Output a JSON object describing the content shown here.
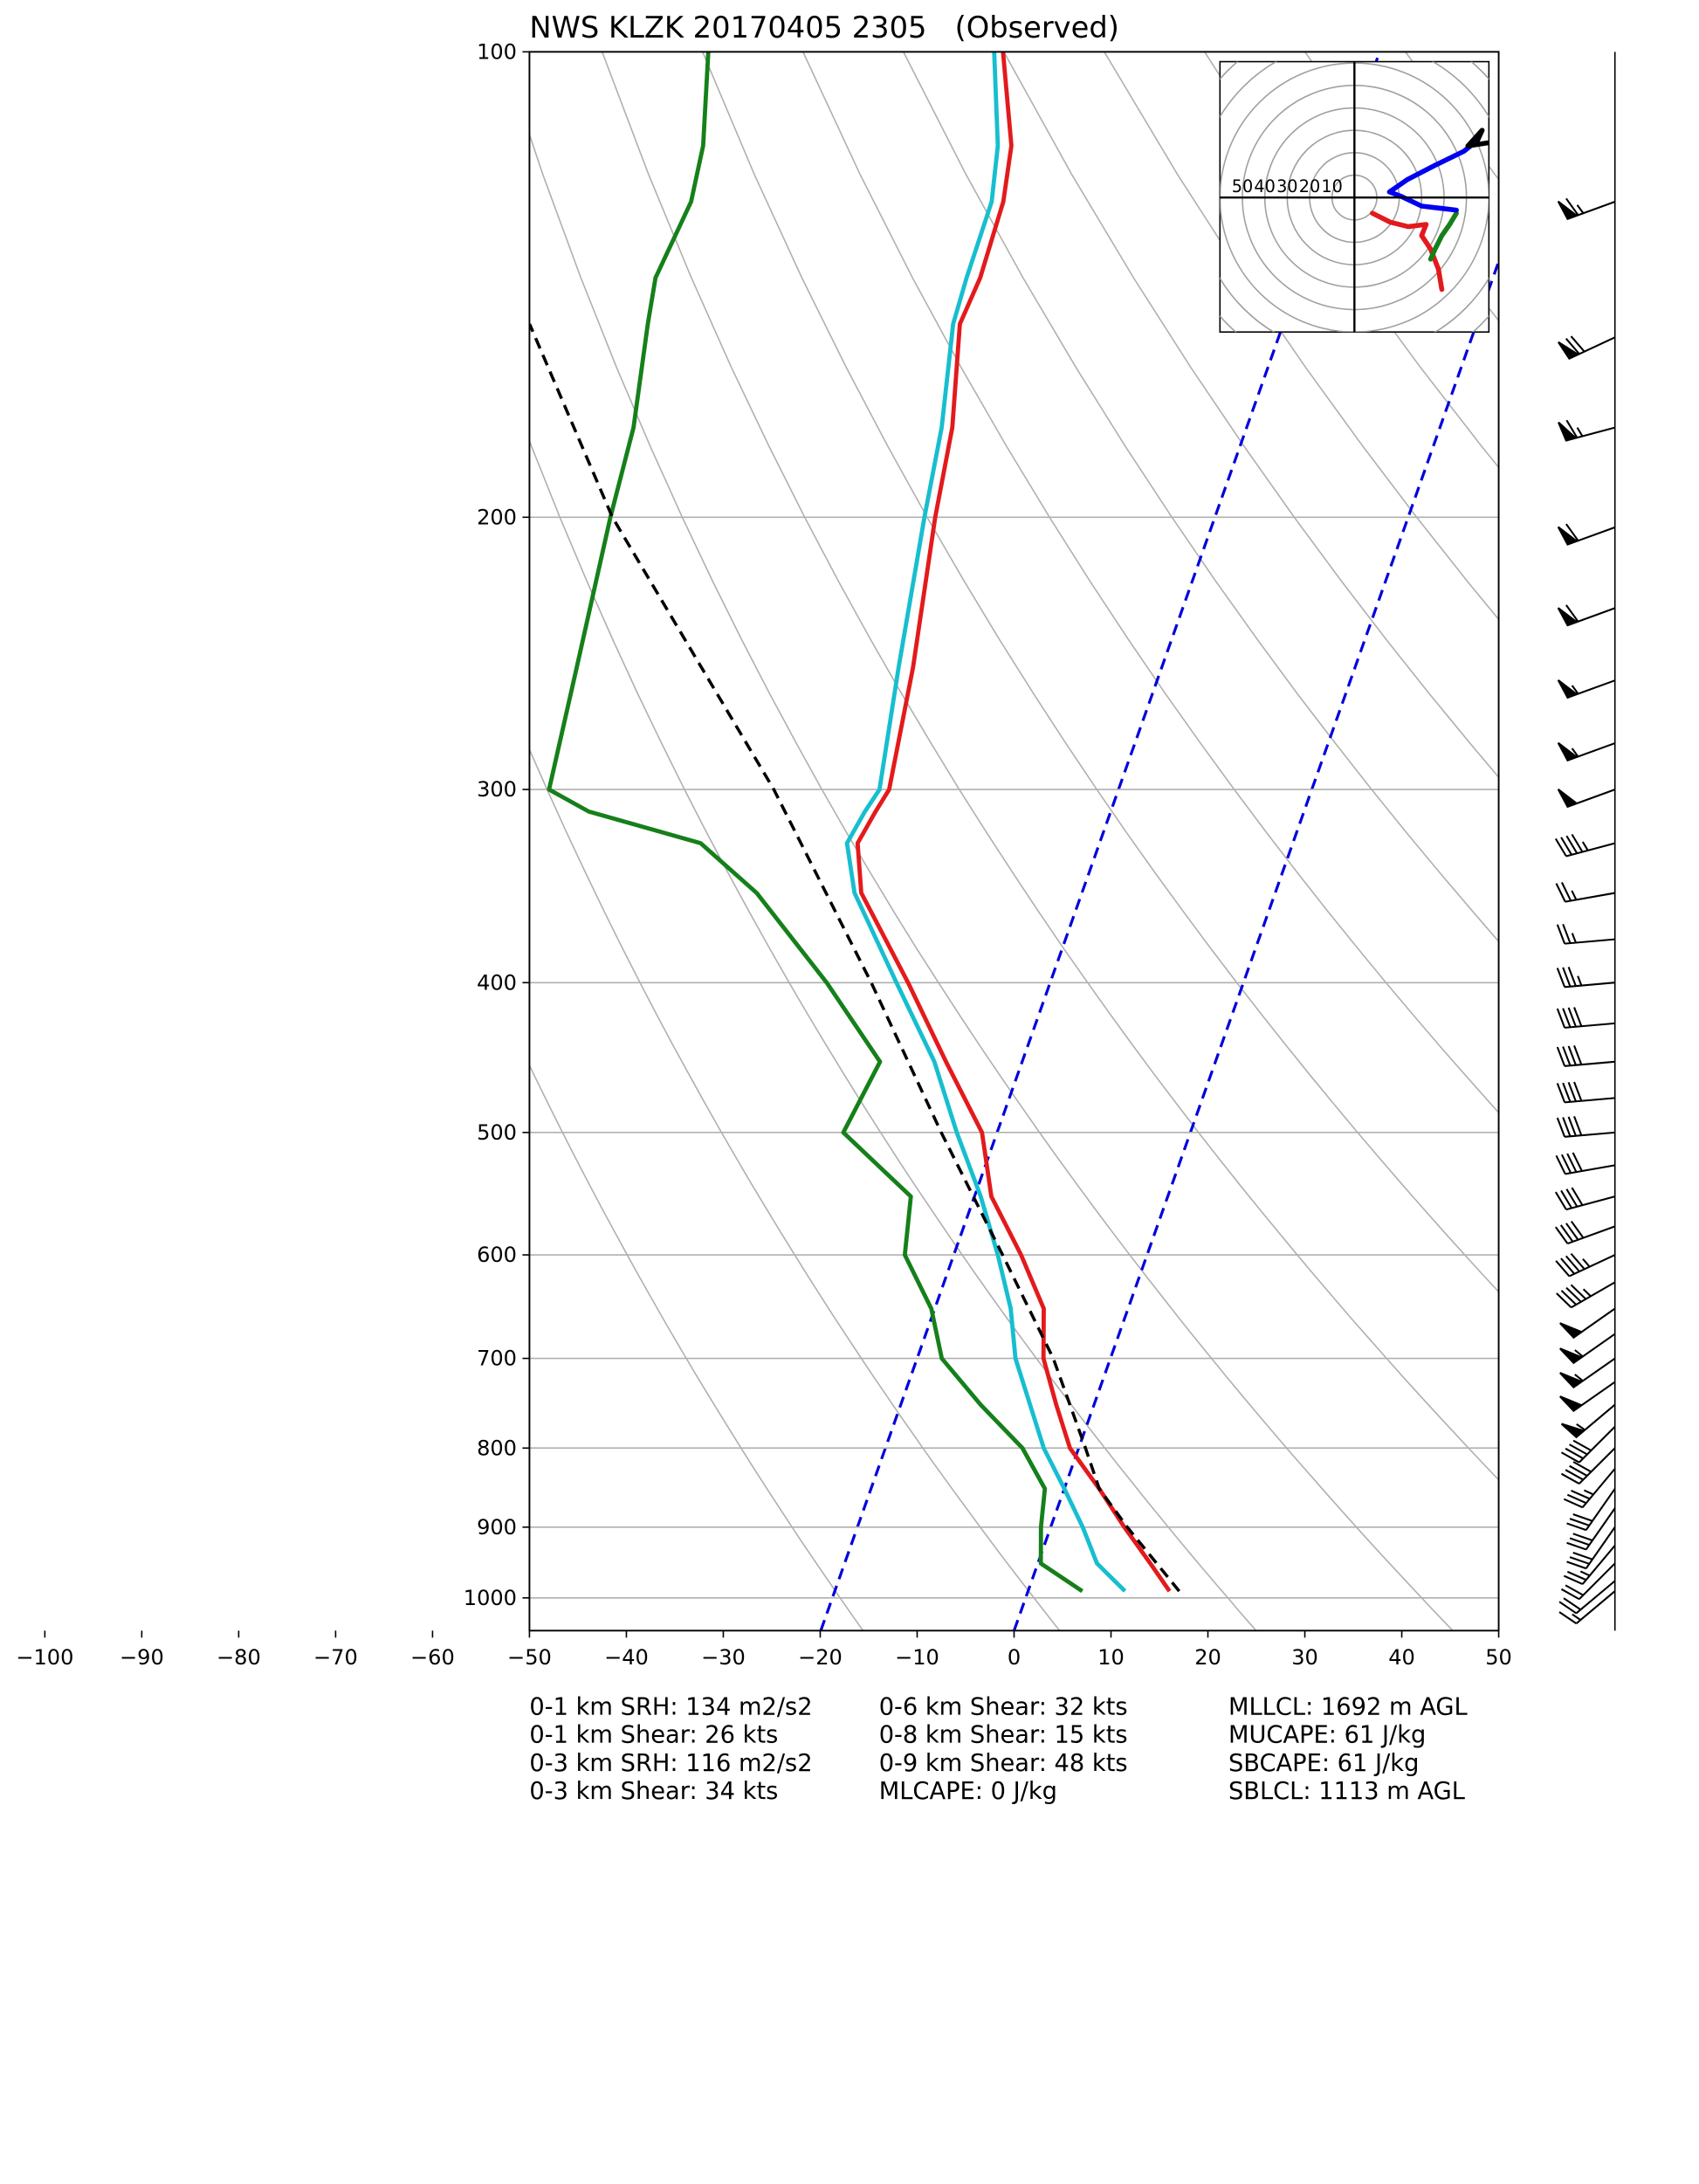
{
  "chart_data": [
    {
      "type": "skewt",
      "title": "NWS KLZK 20170405 2305   (Observed)",
      "xlim": [
        -50,
        50
      ],
      "xticks": [
        {
          "value": -100,
          "label": "−100"
        },
        {
          "value": -90,
          "label": "−90"
        },
        {
          "value": -80,
          "label": "−80"
        },
        {
          "value": -70,
          "label": "−70"
        },
        {
          "value": -60,
          "label": "−60"
        },
        {
          "value": -50,
          "label": "−50"
        },
        {
          "value": -40,
          "label": "−40"
        },
        {
          "value": -30,
          "label": "−30"
        },
        {
          "value": -20,
          "label": "−20"
        },
        {
          "value": -10,
          "label": "−10"
        },
        0,
        10,
        20,
        30,
        40,
        50
      ],
      "ylim": [
        1050,
        100
      ],
      "yticks": [
        100,
        200,
        300,
        400,
        500,
        600,
        700,
        800,
        900,
        1000
      ],
      "log_y": true,
      "grid": true,
      "pressure": [
        990,
        950,
        900,
        850,
        800,
        750,
        700,
        650,
        600,
        550,
        500,
        450,
        400,
        350,
        325,
        310,
        300,
        250,
        200,
        175,
        150,
        140,
        125,
        115,
        100
      ],
      "series": [
        {
          "color": "#e31a1c",
          "values": [
            14.6,
            11.6,
            7.6,
            3.6,
            -0.9,
            -3.9,
            -6.9,
            -8.7,
            -13.0,
            -18.2,
            -21.5,
            -27.8,
            -34.6,
            -42.7,
            -44.9,
            -44.2,
            -43.6,
            -45.6,
            -48.8,
            -50.3,
            -53.3,
            -52.9,
            -53.3,
            -54.5,
            -58.8
          ]
        },
        {
          "color": "#17becf",
          "values": [
            10.0,
            6.1,
            3.3,
            0.0,
            -3.6,
            -6.6,
            -9.8,
            -12.1,
            -15.4,
            -19.3,
            -24.1,
            -29.0,
            -35.8,
            -43.4,
            -46.0,
            -45.3,
            -44.6,
            -47.1,
            -49.9,
            -51.4,
            -54.0,
            -54.3,
            -54.5,
            -55.9,
            -59.7
          ]
        },
        {
          "color": "#15801a",
          "values": [
            5.6,
            0.3,
            -1.0,
            -2.0,
            -5.8,
            -11.7,
            -17.4,
            -20.3,
            -25.0,
            -26.5,
            -35.8,
            -34.6,
            -43.0,
            -53.5,
            -61.1,
            -73.8,
            -78.7,
            -80.3,
            -82.3,
            -83.2,
            -85.5,
            -86.4,
            -85.5,
            -86.3,
            -89.2
          ]
        },
        {
          "color": "#000000",
          "dashed": true,
          "pressure": [
            990,
            900,
            850,
            800,
            700,
            600,
            500,
            400,
            300,
            200,
            150
          ],
          "values": [
            15.6,
            7.9,
            3.6,
            0.7,
            -5.9,
            -14.9,
            -25.7,
            -38.4,
            -55.5,
            -82.1,
            -97.7
          ]
        }
      ],
      "wind_barbs": {
        "pressure": [
          125,
          153,
          175,
          203,
          229,
          255,
          280,
          300,
          325,
          350,
          375,
          400,
          425,
          450,
          475,
          500,
          525,
          550,
          575,
          600,
          625,
          650,
          675,
          700,
          725,
          750,
          775,
          800,
          825,
          850,
          875,
          900,
          925,
          950,
          975,
          990
        ],
        "speed": [
          65,
          70,
          65,
          60,
          60,
          55,
          55,
          50,
          45,
          25,
          25,
          35,
          40,
          40,
          40,
          40,
          40,
          40,
          40,
          45,
          45,
          50,
          55,
          55,
          50,
          55,
          40,
          40,
          35,
          30,
          30,
          30,
          25,
          20,
          20,
          15
        ],
        "direction": [
          250,
          245,
          255,
          250,
          250,
          250,
          250,
          250,
          255,
          260,
          265,
          265,
          265,
          265,
          265,
          265,
          260,
          255,
          250,
          245,
          240,
          235,
          235,
          235,
          235,
          230,
          225,
          225,
          220,
          215,
          215,
          215,
          220,
          225,
          230,
          230
        ]
      },
      "annotations": [
        [
          "0-1 km SRH: 134 m2/s2",
          "0-1 km Shear: 26 kts",
          "0-3 km SRH: 116 m2/s2",
          "0-3 km Shear: 34 kts"
        ],
        [
          "0-6 km Shear: 32 kts",
          "0-8 km Shear: 15 kts",
          "0-9 km Shear: 48 kts",
          "MLCAPE: 0 J/kg"
        ],
        [
          "MLLCL: 1692 m AGL",
          "MUCAPE: 61 J/kg",
          "SBCAPE: 61 J/kg",
          "SBLCL: 1113 m AGL"
        ]
      ]
    },
    {
      "type": "hodograph",
      "rings": [
        50,
        40,
        30,
        20,
        10
      ],
      "xlim": [
        -60,
        60
      ],
      "ylim": [
        -60,
        60
      ],
      "series": [
        {
          "color": "#e31a1c",
          "u": [
            8,
            16,
            24,
            32,
            30,
            34,
            37.5,
            39
          ],
          "v": [
            -7,
            -11,
            -13,
            -12,
            -17,
            -23,
            -32,
            -41
          ]
        },
        {
          "color": "#15801a",
          "u": [
            34,
            36,
            39,
            42.5,
            45.5
          ],
          "v": [
            -27.5,
            -23,
            -17,
            -12,
            -7
          ]
        },
        {
          "color": "#0000ee",
          "u": [
            45.5,
            30,
            20.6,
            15.6,
            23.8,
            36,
            48.8,
            55
          ],
          "v": [
            -5.6,
            -3.8,
            0.6,
            2.5,
            8.1,
            14.4,
            20.6,
            25.6
          ]
        },
        {
          "color": "#000000",
          "u": [
            55,
            57,
            50.6,
            59.4
          ],
          "v": [
            25.6,
            30,
            23,
            24.4
          ]
        }
      ]
    }
  ]
}
